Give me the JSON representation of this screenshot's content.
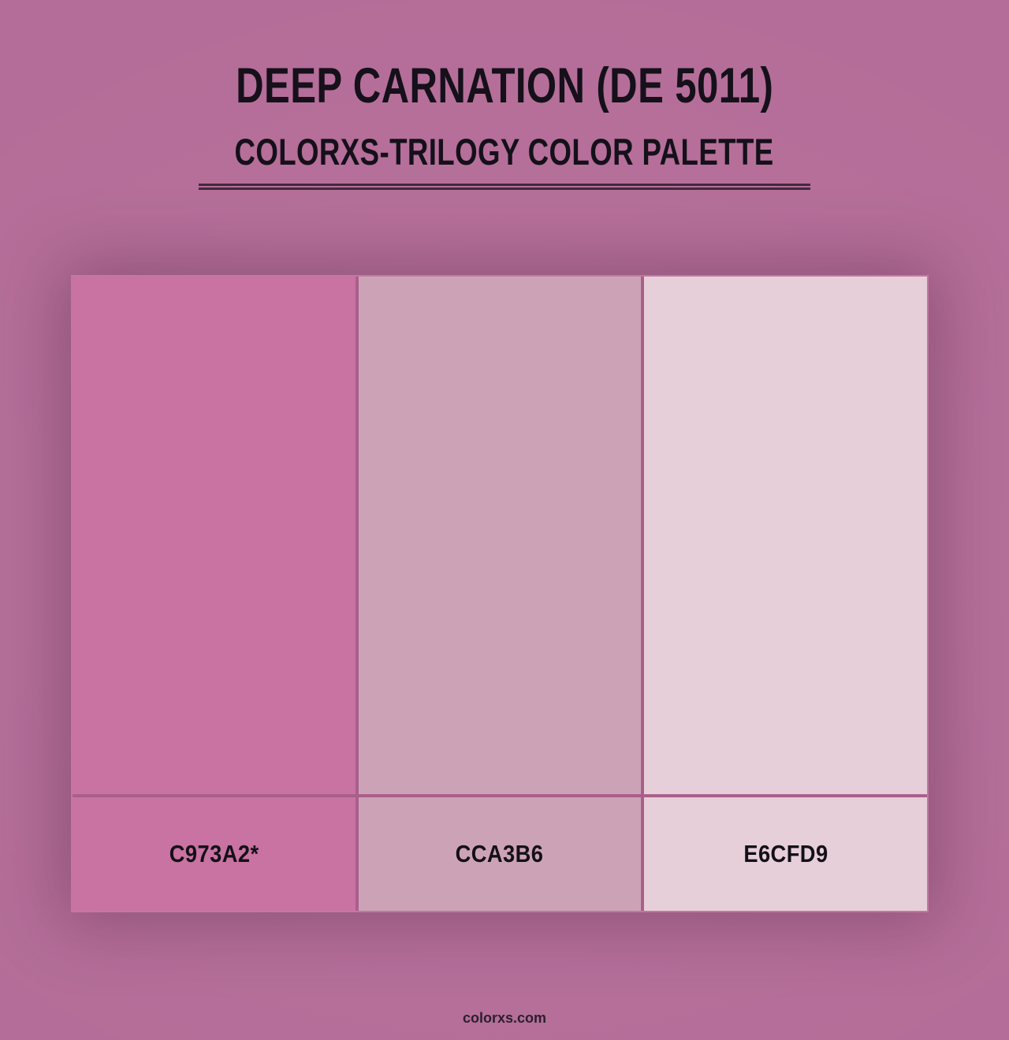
{
  "header": {
    "title": "DEEP CARNATION (DE 5011)",
    "subtitle": "COLORXS-TRILOGY COLOR PALETTE"
  },
  "palette": {
    "swatches": [
      {
        "label": "C973A2*",
        "hex": "#C973A2"
      },
      {
        "label": "CCA3B6",
        "hex": "#CCA3B6"
      },
      {
        "label": "E6CFD9",
        "hex": "#E6CFD9"
      }
    ]
  },
  "footer": {
    "site": "colorxs.com"
  },
  "colors": {
    "background": "#b46d98",
    "text": "#15101a",
    "divider_line": "#43293c",
    "grid_border": "#c377a2",
    "grid_gap": "#aa5f8b"
  }
}
